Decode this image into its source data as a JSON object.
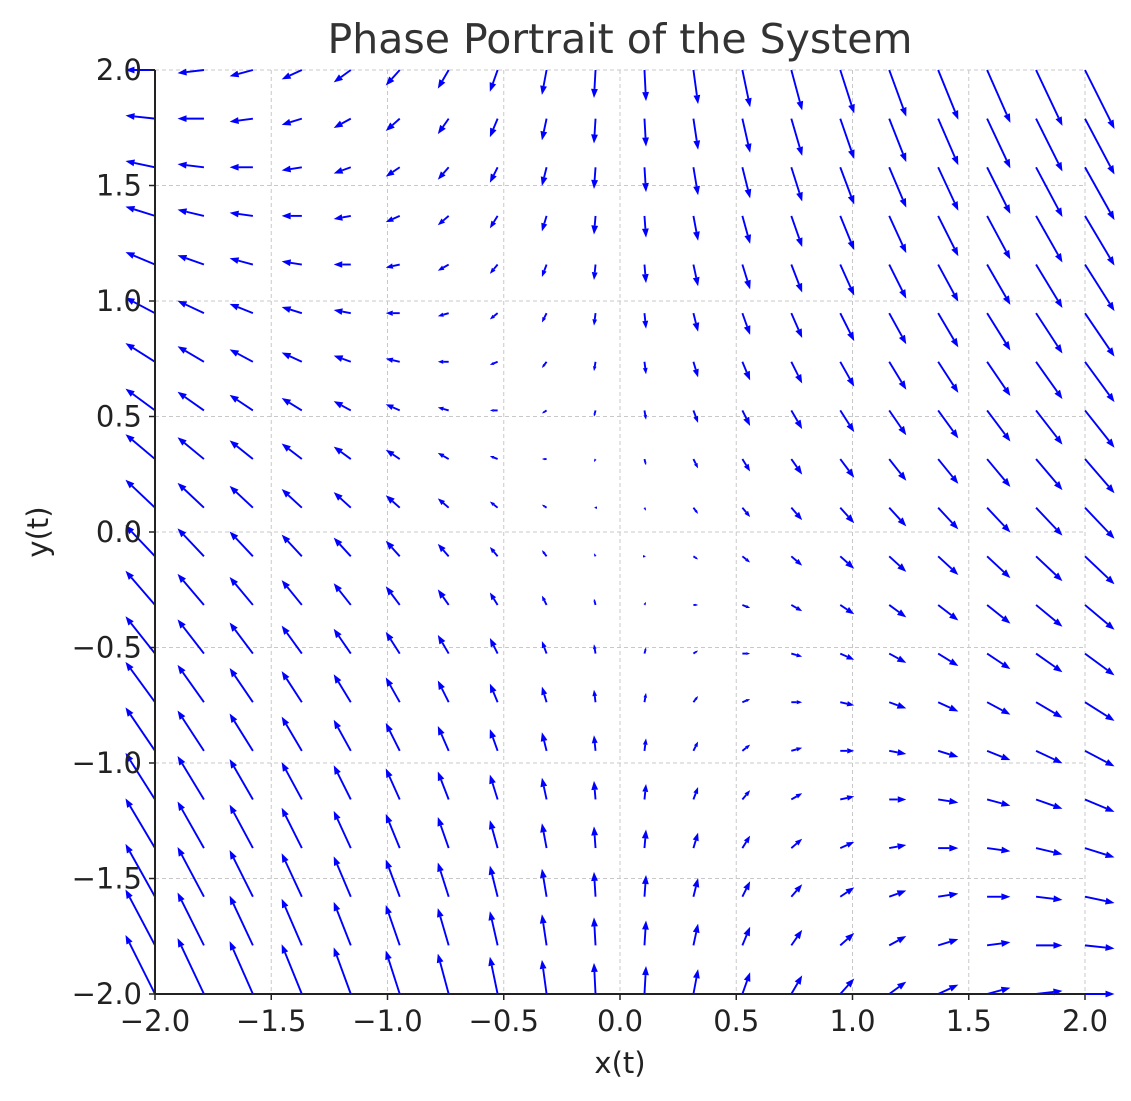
{
  "chart_data": {
    "type": "quiver",
    "title": "Phase Portrait of the System",
    "xlabel": "x(t)",
    "ylabel": "y(t)",
    "xlim": [
      -2.0,
      2.0
    ],
    "ylim": [
      -2.0,
      2.0
    ],
    "xticks": [
      "−2.0",
      "−1.5",
      "−1.0",
      "−0.5",
      "0.0",
      "0.5",
      "1.0",
      "1.5",
      "2.0"
    ],
    "yticks": [
      "−2.0",
      "−1.5",
      "−1.0",
      "−0.5",
      "0.0",
      "0.5",
      "1.0",
      "1.5",
      "2.0"
    ],
    "grid": true,
    "grid_style": "dashed",
    "arrow_color": "#0000ff",
    "grid_samples": 20,
    "vector_field": {
      "dx": "x",
      "dy": "-(x + y)"
    }
  }
}
